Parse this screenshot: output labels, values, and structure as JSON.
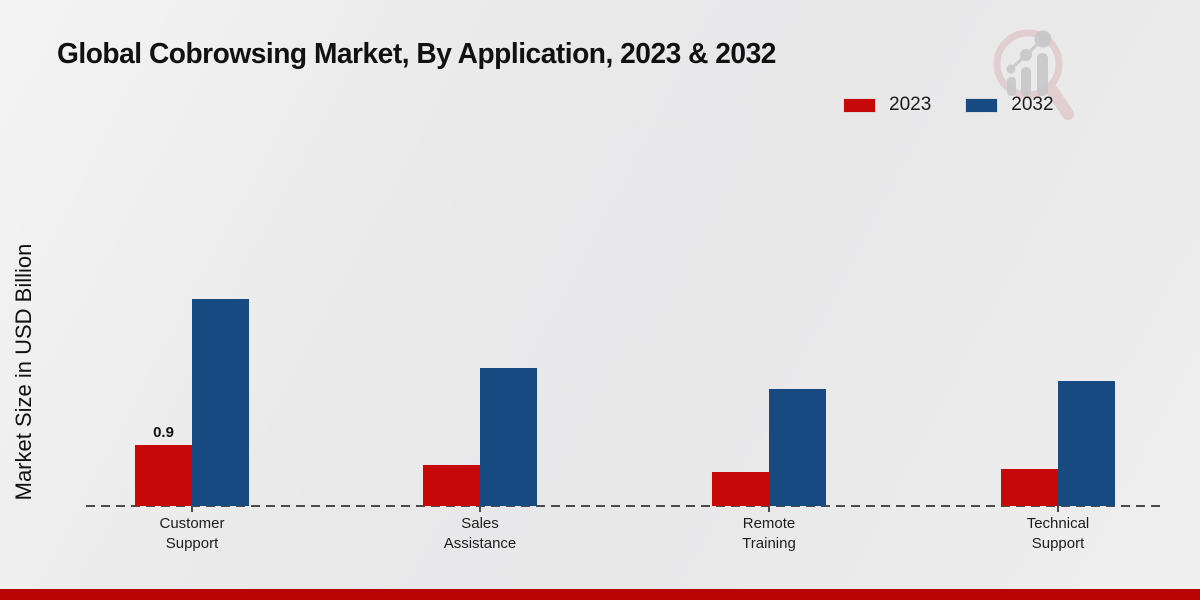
{
  "title": "Global Cobrowsing Market, By Application, 2023 & 2032",
  "y_axis_label": "Market Size in USD Billion",
  "legend": {
    "items": [
      {
        "label": "2023",
        "color": "#c70808"
      },
      {
        "label": "2032",
        "color": "#164a80"
      }
    ]
  },
  "logo": {
    "name": "market-research-magnifier-logo"
  },
  "colors": {
    "series_2023": "#c70808",
    "series_2032": "#164a80",
    "bottom_strip": "#b90404",
    "baseline": "#4a4a4f",
    "background": "#eaeaea"
  },
  "chart_data": {
    "type": "bar",
    "categories": [
      "Customer Support",
      "Sales Assistance",
      "Remote Training",
      "Technical Support"
    ],
    "category_lines": [
      [
        "Customer",
        "Support"
      ],
      [
        "Sales",
        "Assistance"
      ],
      [
        "Remote",
        "Training"
      ],
      [
        "Technical",
        "Support"
      ]
    ],
    "series": [
      {
        "name": "2023",
        "color": "#c70808",
        "values": [
          0.9,
          0.6,
          0.5,
          0.55
        ],
        "data_labels": [
          "0.9",
          "",
          "",
          ""
        ]
      },
      {
        "name": "2032",
        "color": "#164a80",
        "values": [
          3.05,
          2.03,
          1.72,
          1.85
        ],
        "data_labels": [
          "",
          "",
          "",
          ""
        ]
      }
    ],
    "title": "Global Cobrowsing Market, By Application, 2023 & 2032",
    "xlabel": "",
    "ylabel": "Market Size in USD Billion",
    "ylim": [
      0,
      3.6
    ],
    "grid": false,
    "legend_position": "top-right",
    "x_axis_style": "dashed-baseline"
  }
}
